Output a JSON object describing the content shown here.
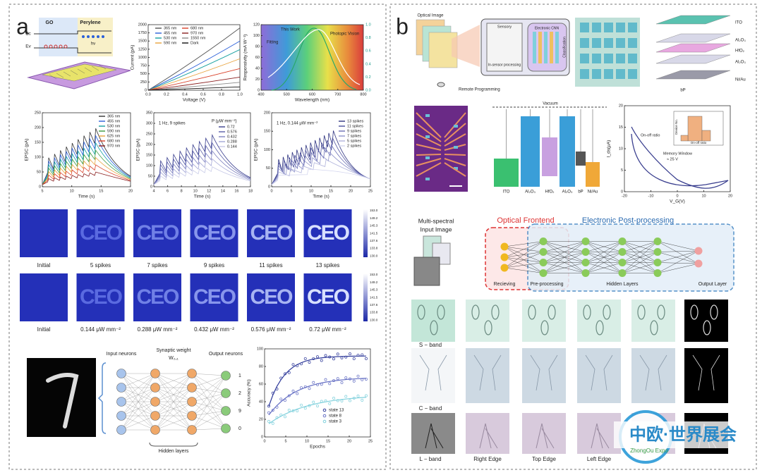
{
  "panel_a": {
    "label": "a",
    "schematic": {
      "go": "GO",
      "perylene": "Perylene",
      "ec": "Ec",
      "ev": "Ev",
      "hv": "hν"
    },
    "iv_chart": {
      "xlabel": "Voltage (V)",
      "ylabel": "Current (pA)",
      "xticks": [
        "0.0",
        "0.2",
        "0.4",
        "0.6",
        "0.8",
        "1.0"
      ],
      "yticks": [
        "0",
        "250",
        "500",
        "750",
        "1000",
        "1250",
        "1500",
        "1750",
        "2000"
      ],
      "legend": [
        "365 nm",
        "455 nm",
        "530 nm",
        "590 nm",
        "680 nm",
        "970 nm",
        "1550 nm",
        "Dark"
      ],
      "colors": [
        "#555555",
        "#2b5fd9",
        "#16a0a0",
        "#e8a23c",
        "#d9422b",
        "#8a1f1f",
        "#8b8b8b",
        "#111111"
      ]
    },
    "resp_chart": {
      "xlabel": "Wavelength (nm)",
      "ylabel": "Responsivity (mA W⁻¹)",
      "xticks": [
        "400",
        "500",
        "600",
        "700",
        "800"
      ],
      "yticks": [
        "0",
        "20",
        "40",
        "60",
        "80",
        "100",
        "120"
      ],
      "y2ticks": [
        "0.0",
        "0.2",
        "0.4",
        "0.6",
        "0.8",
        "1.0"
      ],
      "this_work": "This Work",
      "fitting": "Fitting",
      "photopic": "Photopic Vision"
    },
    "epsc1": {
      "xlabel": "Time (s)",
      "ylabel": "EPSC (pA)",
      "xticks": [
        "5",
        "10",
        "15",
        "20"
      ],
      "yticks": [
        "0",
        "50",
        "100",
        "150",
        "200",
        "250"
      ],
      "legend": [
        "365 nm",
        "455 nm",
        "530 nm",
        "590 nm",
        "625 nm",
        "680 nm",
        "970 nm"
      ],
      "colors": [
        "#333333",
        "#2b5fd9",
        "#16a0a0",
        "#3c9a3c",
        "#e8a23c",
        "#d9422b",
        "#8a1f1f"
      ]
    },
    "epsc2": {
      "xlabel": "Time (s)",
      "ylabel": "EPSC (pA)",
      "title": "1 Hz, 9 spikes",
      "legend_title": "P (μW mm⁻²)",
      "xticks": [
        "4",
        "6",
        "8",
        "10",
        "12",
        "14",
        "16",
        "18"
      ],
      "yticks": [
        "0",
        "50",
        "100",
        "150",
        "200",
        "250",
        "300",
        "350"
      ],
      "legend": [
        "0.72",
        "0.576",
        "0.432",
        "0.288",
        "0.144"
      ],
      "colors": [
        "#3a3f8f",
        "#5a5fa8",
        "#7e82c0",
        "#a3a6d6",
        "#c9cbe8"
      ]
    },
    "epsc3": {
      "xlabel": "Time (s)",
      "ylabel": "EPSC (pA)",
      "title": "1 Hz, 0.144 μW mm⁻²",
      "xticks": [
        "0",
        "5",
        "10",
        "15",
        "20",
        "25"
      ],
      "yticks": [
        "0",
        "50",
        "100",
        "150",
        "200"
      ],
      "legend": [
        "13 spikes",
        "11 spikes",
        "9 spikes",
        "7 spikes",
        "5 spikes",
        "2 spikes"
      ],
      "colors": [
        "#2f3480",
        "#4a4f9c",
        "#6a6fb4",
        "#8e92ca",
        "#b1b4dc",
        "#d3d5ee"
      ]
    },
    "ceo_text": "CEO",
    "row1_labels": [
      "Initial",
      "5 spikes",
      "7 spikes",
      "9 spikes",
      "11 spikes",
      "13 spikes"
    ],
    "row2_labels": [
      "Initial",
      "0.144 μW mm⁻²",
      "0.288 μW mm⁻²",
      "0.432 μW mm⁻²",
      "0.576 μW mm⁻²",
      "0.72 μW mm⁻²"
    ],
    "colorbar_ticks": [
      "153.0",
      "149.2",
      "145.3",
      "141.5",
      "137.6",
      "133.8",
      "130.0"
    ],
    "network": {
      "input": "Input neurons",
      "weight": "Synaptic weight",
      "weight_sym": "W₂,₁",
      "output": "Output neurons",
      "hidden": "Hidden layers",
      "outputs": [
        "1",
        "2",
        "9",
        "0"
      ]
    },
    "acc_chart": {
      "xlabel": "Epochs",
      "ylabel": "Accuracy (%)",
      "xticks": [
        "0",
        "5",
        "10",
        "15",
        "20",
        "25"
      ],
      "yticks": [
        "0",
        "20",
        "40",
        "60",
        "80",
        "100"
      ],
      "legend": [
        "state 13",
        "state 8",
        "state 3"
      ],
      "colors": [
        "#2f3a9a",
        "#6670c4",
        "#7fd0dc"
      ]
    }
  },
  "panel_b": {
    "label": "b",
    "optical_image": "Optical Image",
    "remote": "Remote Programming",
    "chip": {
      "sensory": "Sensory",
      "insensor": "In-sensor processing",
      "cnn": "Electronic CNN",
      "classification": "Classification"
    },
    "stack": [
      "ITO",
      "Al₂O₃",
      "HfO₂",
      "Al₂O₃",
      "Ni/Au",
      "bP"
    ],
    "band": {
      "vacuum": "Vacuum",
      "layers": [
        "ITO",
        "Al₂O₃",
        "HfO₂",
        "Al₂O₃",
        "bP",
        "Ni/Au"
      ]
    },
    "hyst_chart": {
      "xlabel": "V_G(V)",
      "ylabel": "I_ds(μA)",
      "xticks": [
        "-20",
        "-10",
        "0",
        "10",
        "20"
      ],
      "yticks": [
        "0",
        "5",
        "10",
        "15",
        "20"
      ],
      "onoff": "On-off ratio",
      "window": "Memory Window",
      "window_val": "≈ 25 V",
      "inset_y": "Device No.",
      "inset_x": "On-off ratio"
    },
    "nn": {
      "input": "Multi-spectral",
      "input2": "Input Image",
      "optical": "Optical Frontend",
      "electronic": "Electronic Post-processing",
      "recieving": "Recieving",
      "pre": "Pre-processing",
      "hidden": "Hidden Layers",
      "output": "Output Layer"
    },
    "bands": [
      "S − band",
      "C − band",
      "L − band"
    ],
    "edges": [
      "Right Edge",
      "Top Edge",
      "Left Edge"
    ],
    "watermark": "中欧·世界展会",
    "watermark_en": "ZhongOu Expo"
  }
}
